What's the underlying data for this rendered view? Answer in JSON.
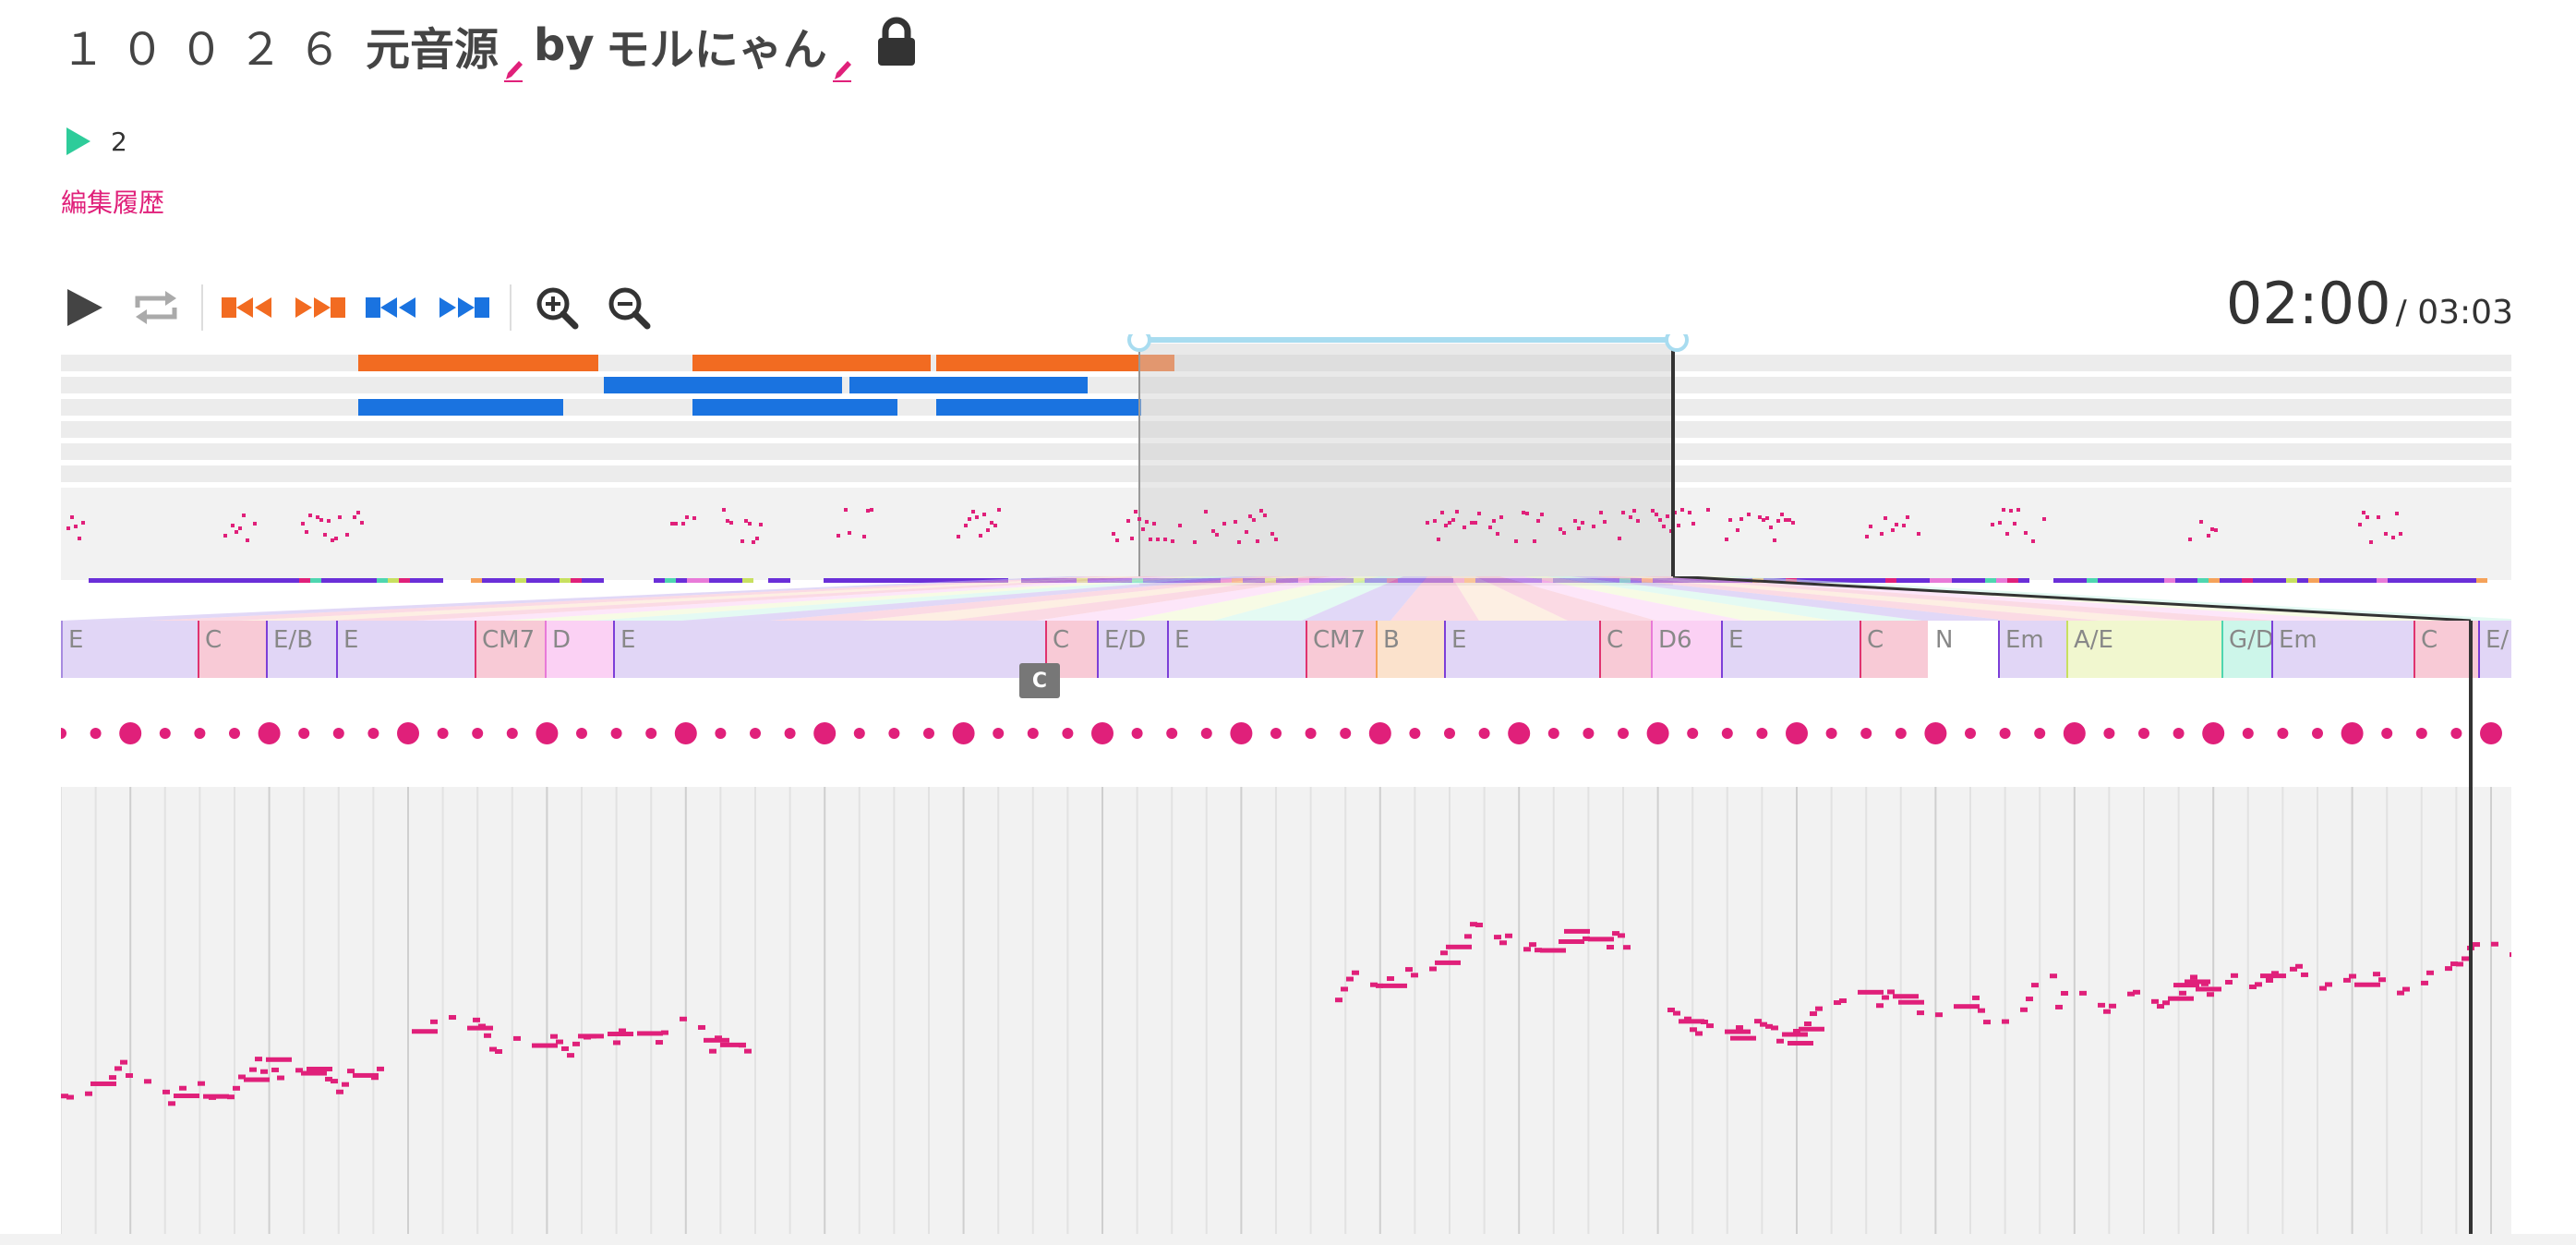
{
  "header": {
    "song_id": "１００２６",
    "song_title": "元音源",
    "by_label": "by",
    "author": "モルにゃん",
    "play_count": "2",
    "history_link": "編集履歴"
  },
  "toolbar": {
    "icons": [
      "play-icon",
      "repeat-icon",
      "jump-start-orange-icon",
      "jump-end-orange-icon",
      "jump-start-blue-icon",
      "jump-end-blue-icon",
      "zoom-in-icon",
      "zoom-out-icon"
    ]
  },
  "time": {
    "current": "02:00",
    "total": "/ 03:03"
  },
  "chords": [
    {
      "label": "E",
      "start": 0,
      "end": 148,
      "color": "#e1d6f6",
      "border": "#a78be0"
    },
    {
      "label": "C",
      "start": 148,
      "end": 222,
      "color": "#f8cad6",
      "border": "#e0336f"
    },
    {
      "label": "E/B",
      "start": 222,
      "end": 298,
      "color": "#e1d6f6",
      "border": "#7c3fd8"
    },
    {
      "label": "E",
      "start": 298,
      "end": 448,
      "color": "#e1d6f6",
      "border": "#7c3fd8"
    },
    {
      "label": "CM7",
      "start": 448,
      "end": 524,
      "color": "#f8cad6",
      "border": "#e0336f"
    },
    {
      "label": "D",
      "start": 524,
      "end": 598,
      "color": "#fbd1f4",
      "border": "#e87ad8"
    },
    {
      "label": "E",
      "start": 598,
      "end": 1066,
      "color": "#e1d6f6",
      "border": "#7c3fd8"
    },
    {
      "label": "C",
      "start": 1066,
      "end": 1122,
      "color": "#f8cad6",
      "border": "#e0336f"
    },
    {
      "label": "E/D",
      "start": 1122,
      "end": 1198,
      "color": "#e1d6f6",
      "border": "#7c3fd8"
    },
    {
      "label": "E",
      "start": 1198,
      "end": 1348,
      "color": "#e1d6f6",
      "border": "#7c3fd8"
    },
    {
      "label": "CM7",
      "start": 1348,
      "end": 1424,
      "color": "#f8cad6",
      "border": "#e0336f"
    },
    {
      "label": "B",
      "start": 1424,
      "end": 1498,
      "color": "#fbe2cc",
      "border": "#f5a25a"
    },
    {
      "label": "E",
      "start": 1498,
      "end": 1666,
      "color": "#e1d6f6",
      "border": "#7c3fd8"
    },
    {
      "label": "C",
      "start": 1666,
      "end": 1722,
      "color": "#f8cad6",
      "border": "#e0336f"
    },
    {
      "label": "D6",
      "start": 1722,
      "end": 1798,
      "color": "#fbd1f4",
      "border": "#e87ad8"
    },
    {
      "label": "E",
      "start": 1798,
      "end": 1948,
      "color": "#e1d6f6",
      "border": "#7c3fd8"
    },
    {
      "label": "C",
      "start": 1948,
      "end": 2022,
      "color": "#f8cad6",
      "border": "#e0336f"
    },
    {
      "label": "N",
      "start": 2022,
      "end": 2098,
      "color": "#ffffff",
      "border": "#ffffff"
    },
    {
      "label": "Em",
      "start": 2098,
      "end": 2172,
      "color": "#e1d6f6",
      "border": "#7c3fd8"
    },
    {
      "label": "A/E",
      "start": 2172,
      "end": 2340,
      "color": "#f1f7cf",
      "border": "#c8e060"
    },
    {
      "label": "G/D",
      "start": 2340,
      "end": 2394,
      "color": "#cdf6ea",
      "border": "#4ed6b0"
    },
    {
      "label": "Em",
      "start": 2394,
      "end": 2548,
      "color": "#e1d6f6",
      "border": "#7c3fd8"
    },
    {
      "label": "C",
      "start": 2548,
      "end": 2618,
      "color": "#f8cad6",
      "border": "#e0336f"
    },
    {
      "label": "E/",
      "start": 2618,
      "end": 2654,
      "color": "#e1d6f6",
      "border": "#7c3fd8"
    }
  ],
  "tooltip": "C",
  "colors": {
    "accent": "#e0207a",
    "play": "#2ecc9a",
    "orange": "#f26b21",
    "blue": "#1a73e0",
    "cursor": "#333333",
    "selection": "#a8dcf0"
  }
}
